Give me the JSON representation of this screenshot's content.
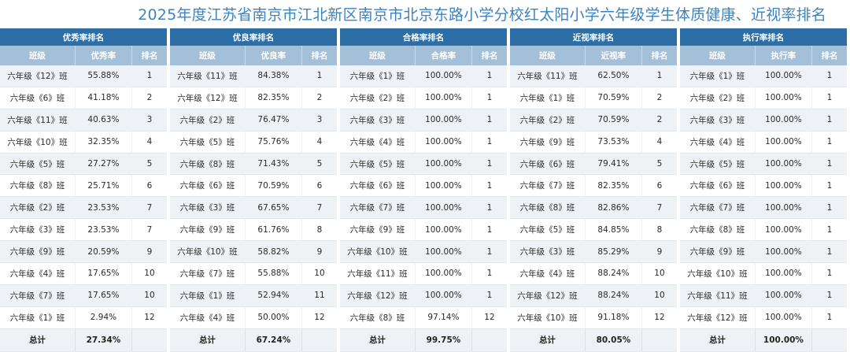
{
  "title": "2025年度江苏省南京市江北新区南京市北京东路小学分校红太阳小学六年级学生体质健康、近视率排名",
  "colors": {
    "title": "#3d83c0",
    "panel_header": "#2d6ea6",
    "column_header": "#a4c0d9",
    "total_row": "#c7d6e5"
  },
  "panels": [
    {
      "title": "优秀率排名",
      "headers": [
        "班级",
        "优秀率",
        "排名"
      ],
      "rows": [
        [
          "六年级《12》班",
          "55.88%",
          "1"
        ],
        [
          "六年级《6》班",
          "41.18%",
          "2"
        ],
        [
          "六年级《11》班",
          "40.63%",
          "3"
        ],
        [
          "六年级《10》班",
          "32.35%",
          "4"
        ],
        [
          "六年级《5》班",
          "27.27%",
          "5"
        ],
        [
          "六年级《8》班",
          "25.71%",
          "6"
        ],
        [
          "六年级《2》班",
          "23.53%",
          "7"
        ],
        [
          "六年级《3》班",
          "23.53%",
          "7"
        ],
        [
          "六年级《9》班",
          "20.59%",
          "9"
        ],
        [
          "六年级《4》班",
          "17.65%",
          "10"
        ],
        [
          "六年级《7》班",
          "17.65%",
          "10"
        ],
        [
          "六年级《1》班",
          "2.94%",
          "12"
        ]
      ],
      "total": [
        "总计",
        "27.34%",
        ""
      ]
    },
    {
      "title": "优良率排名",
      "headers": [
        "班级",
        "优良率",
        "排名"
      ],
      "rows": [
        [
          "六年级《11》班",
          "84.38%",
          "1"
        ],
        [
          "六年级《12》班",
          "82.35%",
          "2"
        ],
        [
          "六年级《2》班",
          "76.47%",
          "3"
        ],
        [
          "六年级《5》班",
          "75.76%",
          "4"
        ],
        [
          "六年级《8》班",
          "71.43%",
          "5"
        ],
        [
          "六年级《6》班",
          "70.59%",
          "6"
        ],
        [
          "六年级《3》班",
          "67.65%",
          "7"
        ],
        [
          "六年级《9》班",
          "61.76%",
          "8"
        ],
        [
          "六年级《10》班",
          "58.82%",
          "9"
        ],
        [
          "六年级《7》班",
          "55.88%",
          "10"
        ],
        [
          "六年级《1》班",
          "52.94%",
          "11"
        ],
        [
          "六年级《4》班",
          "50.00%",
          "12"
        ]
      ],
      "total": [
        "总计",
        "67.24%",
        ""
      ]
    },
    {
      "title": "合格率排名",
      "headers": [
        "班级",
        "合格率",
        "排名"
      ],
      "rows": [
        [
          "六年级《1》班",
          "100.00%",
          "1"
        ],
        [
          "六年级《2》班",
          "100.00%",
          "1"
        ],
        [
          "六年级《3》班",
          "100.00%",
          "1"
        ],
        [
          "六年级《4》班",
          "100.00%",
          "1"
        ],
        [
          "六年级《5》班",
          "100.00%",
          "1"
        ],
        [
          "六年级《6》班",
          "100.00%",
          "1"
        ],
        [
          "六年级《7》班",
          "100.00%",
          "1"
        ],
        [
          "六年级《9》班",
          "100.00%",
          "1"
        ],
        [
          "六年级《10》班",
          "100.00%",
          "1"
        ],
        [
          "六年级《11》班",
          "100.00%",
          "1"
        ],
        [
          "六年级《12》班",
          "100.00%",
          "1"
        ],
        [
          "六年级《8》班",
          "97.14%",
          "12"
        ]
      ],
      "total": [
        "总计",
        "99.75%",
        ""
      ]
    },
    {
      "title": "近视率排名",
      "headers": [
        "班级",
        "近视率",
        "排名"
      ],
      "rows": [
        [
          "六年级《11》班",
          "62.50%",
          "1"
        ],
        [
          "六年级《1》班",
          "70.59%",
          "2"
        ],
        [
          "六年级《2》班",
          "70.59%",
          "2"
        ],
        [
          "六年级《9》班",
          "73.53%",
          "4"
        ],
        [
          "六年级《6》班",
          "79.41%",
          "5"
        ],
        [
          "六年级《7》班",
          "82.35%",
          "6"
        ],
        [
          "六年级《8》班",
          "82.86%",
          "7"
        ],
        [
          "六年级《5》班",
          "84.85%",
          "8"
        ],
        [
          "六年级《3》班",
          "85.29%",
          "9"
        ],
        [
          "六年级《4》班",
          "88.24%",
          "10"
        ],
        [
          "六年级《12》班",
          "88.24%",
          "10"
        ],
        [
          "六年级《10》班",
          "91.18%",
          "12"
        ]
      ],
      "total": [
        "总计",
        "80.05%",
        ""
      ]
    },
    {
      "title": "执行率排名",
      "headers": [
        "班级",
        "执行率",
        "排名"
      ],
      "rows": [
        [
          "六年级《1》班",
          "100.00%",
          "1"
        ],
        [
          "六年级《2》班",
          "100.00%",
          "1"
        ],
        [
          "六年级《3》班",
          "100.00%",
          "1"
        ],
        [
          "六年级《4》班",
          "100.00%",
          "1"
        ],
        [
          "六年级《5》班",
          "100.00%",
          "1"
        ],
        [
          "六年级《6》班",
          "100.00%",
          "1"
        ],
        [
          "六年级《7》班",
          "100.00%",
          "1"
        ],
        [
          "六年级《8》班",
          "100.00%",
          "1"
        ],
        [
          "六年级《9》班",
          "100.00%",
          "1"
        ],
        [
          "六年级《10》班",
          "100.00%",
          "1"
        ],
        [
          "六年级《11》班",
          "100.00%",
          "1"
        ],
        [
          "六年级《12》班",
          "100.00%",
          "1"
        ]
      ],
      "total": [
        "总计",
        "100.00%",
        ""
      ]
    }
  ]
}
